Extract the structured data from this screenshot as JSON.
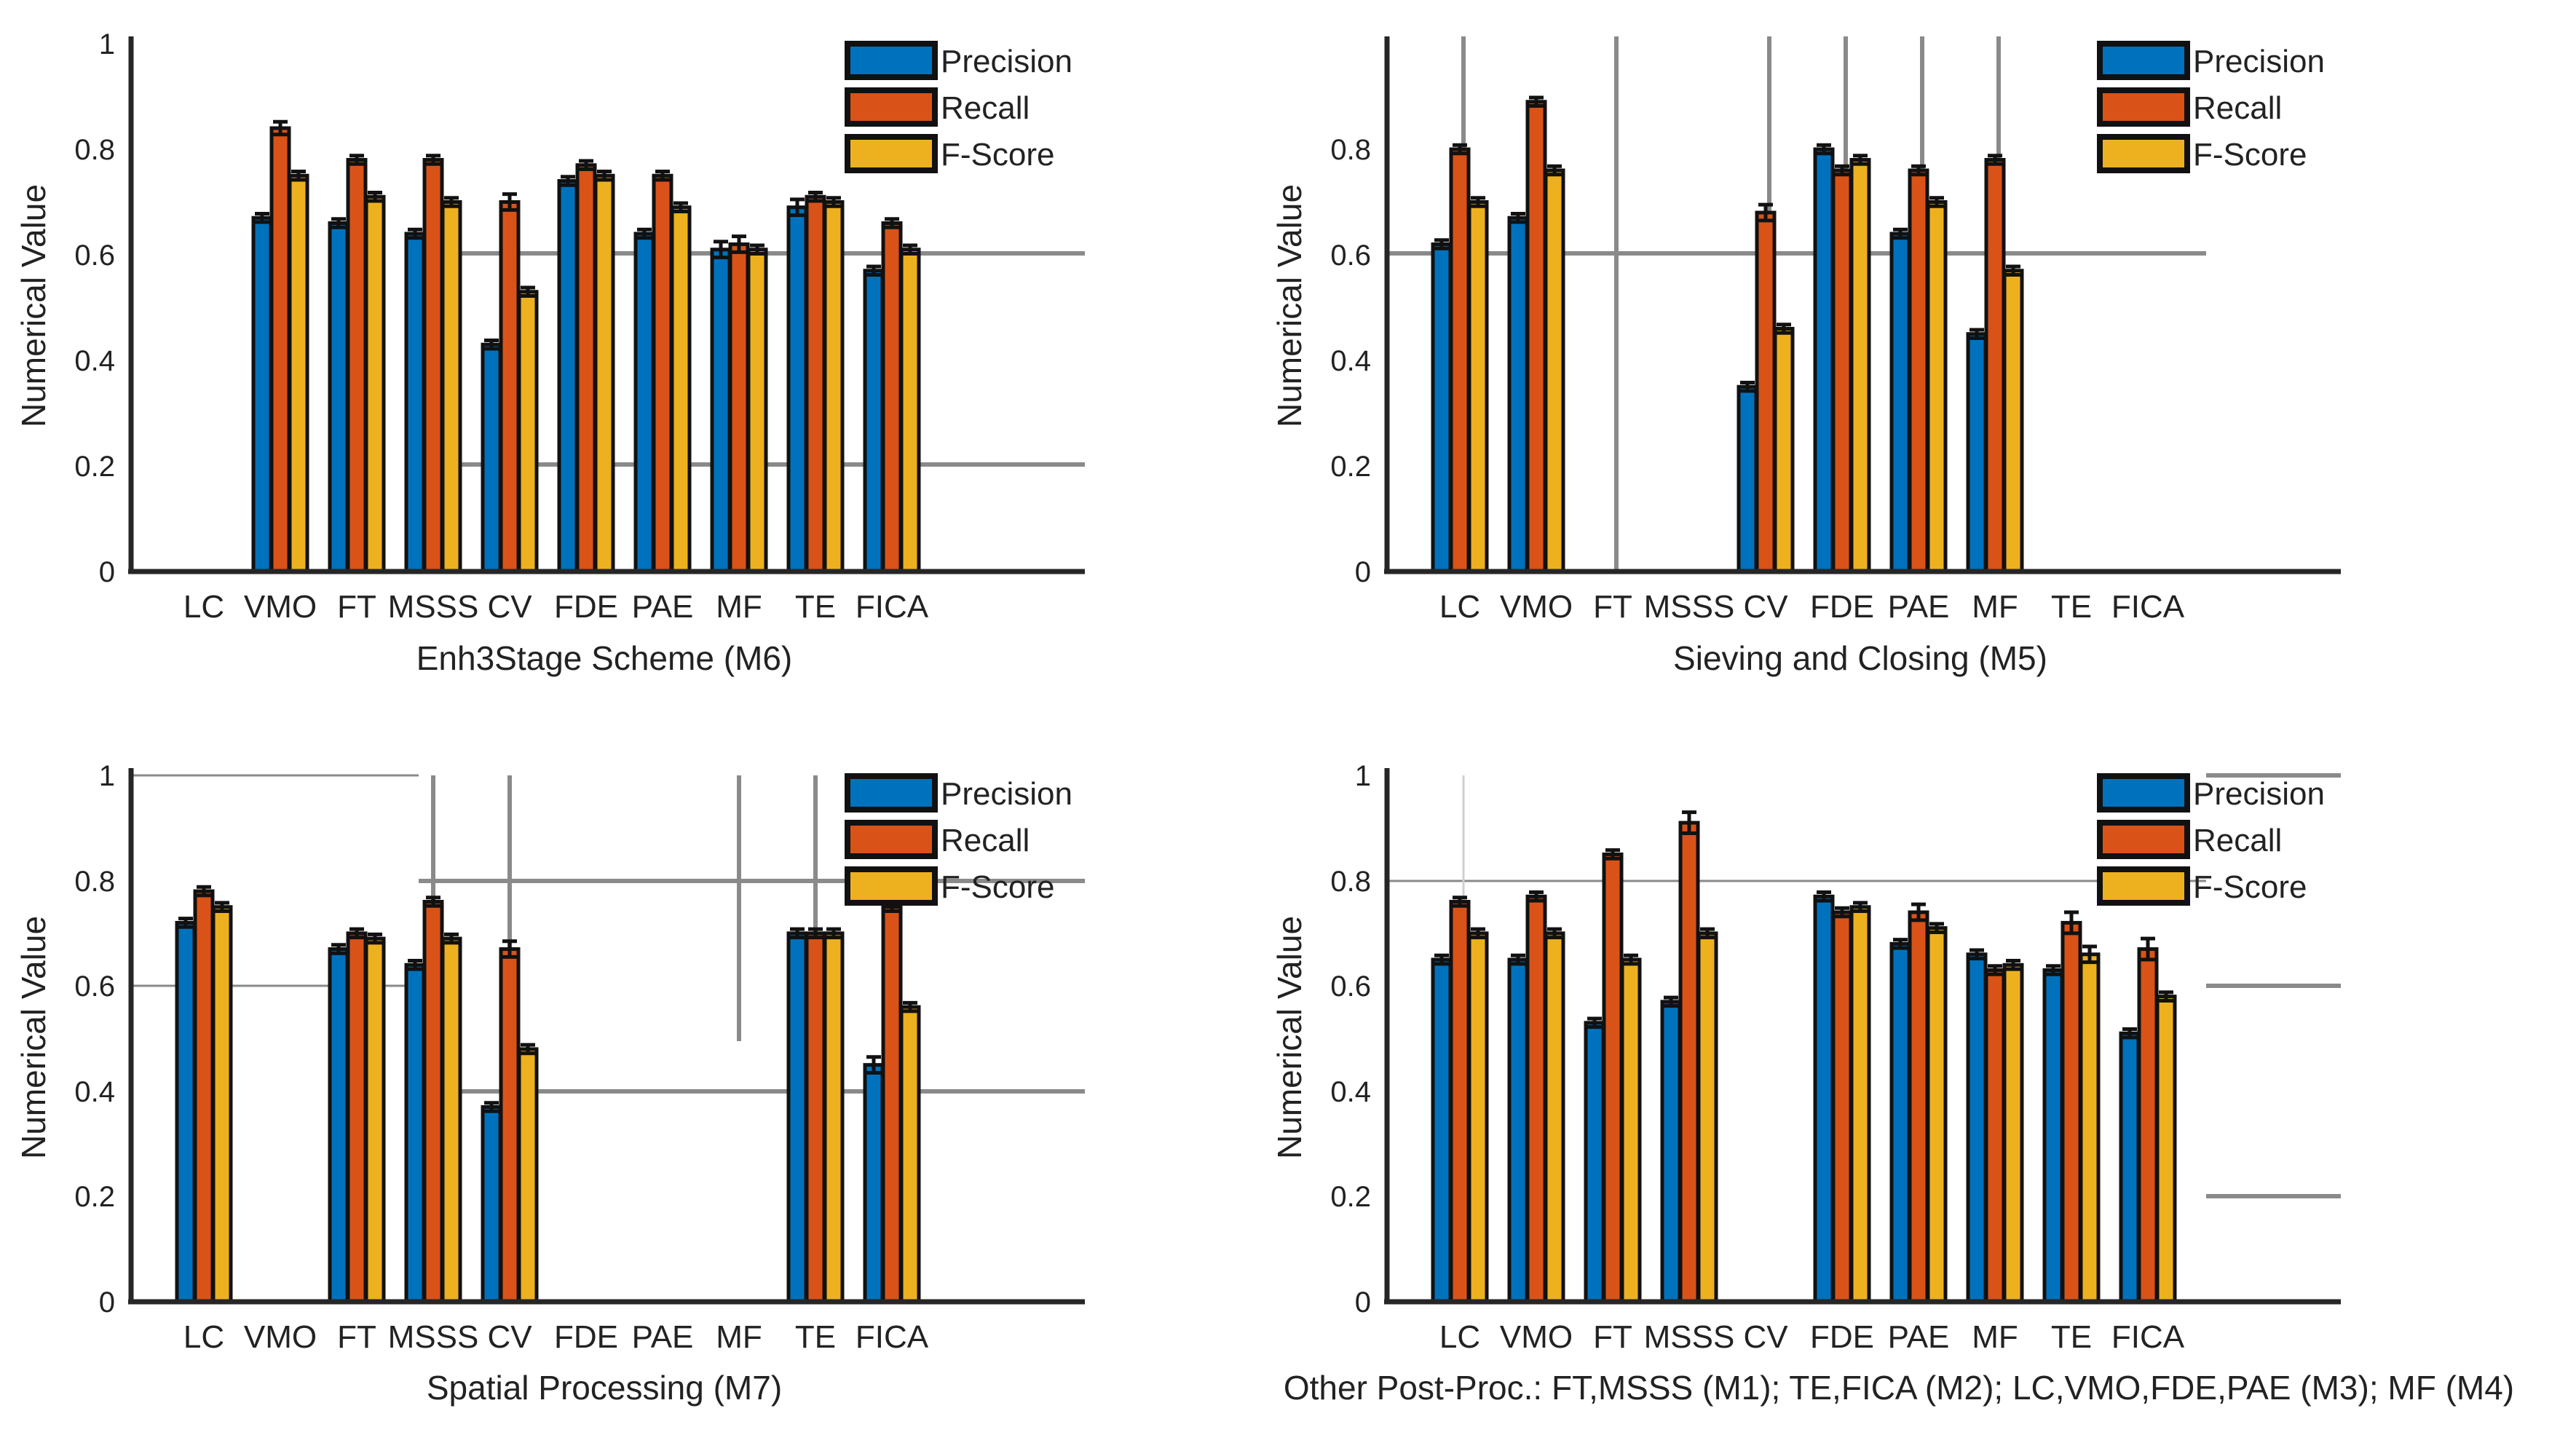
{
  "chart_data": [
    {
      "type": "bar",
      "xlabel": "Enh3Stage Scheme (M6)",
      "ylabel": "Numerical Value",
      "ylim": [
        0,
        1
      ],
      "yticks": [
        "0",
        "0.2",
        "0.4",
        "0.6",
        "0.8",
        "1"
      ],
      "categories": [
        "LC",
        "VMO",
        "FT",
        "MSSS",
        "CV",
        "FDE",
        "PAE",
        "MF",
        "TE",
        "FICA"
      ],
      "series": [
        {
          "name": "Precision",
          "values": [
            0,
            0.67,
            0.66,
            0.64,
            0.43,
            0.74,
            0.64,
            0.61,
            0.69,
            0.57
          ]
        },
        {
          "name": "Recall",
          "values": [
            0,
            0.84,
            0.78,
            0.78,
            0.7,
            0.77,
            0.75,
            0.62,
            0.71,
            0.66
          ]
        },
        {
          "name": "F-Score",
          "values": [
            0,
            0.75,
            0.71,
            0.7,
            0.53,
            0.75,
            0.69,
            0.61,
            0.7,
            0.61
          ]
        }
      ],
      "errors": [
        [
          0,
          0.008,
          0.008,
          0.008,
          0.008,
          0.008,
          0.008,
          0.015,
          0.015,
          0.008
        ],
        [
          0,
          0.012,
          0.008,
          0.008,
          0.015,
          0.008,
          0.008,
          0.015,
          0.008,
          0.008
        ],
        [
          0,
          0.008,
          0.008,
          0.008,
          0.008,
          0.008,
          0.008,
          0.008,
          0.008,
          0.008
        ]
      ],
      "legend": {
        "position": "top-right",
        "entries": [
          "Precision",
          "Recall",
          "F-Score"
        ]
      },
      "colors": [
        "#0072BD",
        "#D95319",
        "#EDB120"
      ]
    },
    {
      "type": "bar",
      "xlabel": "Sieving and Closing (M5)",
      "ylabel": "Numerical Value",
      "ylim": [
        0,
        1
      ],
      "yticks": [
        "0",
        "0.2",
        "0.4",
        "0.6",
        "0.8"
      ],
      "categories": [
        "LC",
        "VMO",
        "FT",
        "MSSS",
        "CV",
        "FDE",
        "PAE",
        "MF",
        "TE",
        "FICA"
      ],
      "series": [
        {
          "name": "Precision",
          "values": [
            0.62,
            0.67,
            0,
            0,
            0.35,
            0.8,
            0.64,
            0.45,
            0,
            0
          ]
        },
        {
          "name": "Recall",
          "values": [
            0.8,
            0.89,
            0,
            0,
            0.68,
            0.76,
            0.76,
            0.78,
            0,
            0
          ]
        },
        {
          "name": "F-Score",
          "values": [
            0.7,
            0.76,
            0,
            0,
            0.46,
            0.78,
            0.7,
            0.57,
            0,
            0
          ]
        }
      ],
      "errors": [
        [
          0.008,
          0.008,
          0,
          0,
          0.008,
          0.008,
          0.008,
          0.008,
          0,
          0
        ],
        [
          0.008,
          0.008,
          0,
          0,
          0.015,
          0.008,
          0.008,
          0.008,
          0,
          0
        ],
        [
          0.008,
          0.008,
          0,
          0,
          0.008,
          0.008,
          0.008,
          0.008,
          0,
          0
        ]
      ],
      "legend": {
        "position": "top-right",
        "entries": [
          "Precision",
          "Recall",
          "F-Score"
        ]
      },
      "colors": [
        "#0072BD",
        "#D95319",
        "#EDB120"
      ]
    },
    {
      "type": "bar",
      "xlabel": "Spatial Processing (M7)",
      "ylabel": "Numerical Value",
      "ylim": [
        0,
        1
      ],
      "yticks": [
        "0",
        "0.2",
        "0.4",
        "0.6",
        "0.8",
        "1"
      ],
      "categories": [
        "LC",
        "VMO",
        "FT",
        "MSSS",
        "CV",
        "FDE",
        "PAE",
        "MF",
        "TE",
        "FICA"
      ],
      "series": [
        {
          "name": "Precision",
          "values": [
            0.72,
            0,
            0.67,
            0.64,
            0.37,
            0,
            0,
            0,
            0.7,
            0.45
          ]
        },
        {
          "name": "Recall",
          "values": [
            0.78,
            0,
            0.7,
            0.76,
            0.67,
            0,
            0,
            0,
            0.7,
            0.75
          ]
        },
        {
          "name": "F-Score",
          "values": [
            0.75,
            0,
            0.69,
            0.69,
            0.48,
            0,
            0,
            0,
            0.7,
            0.56
          ]
        }
      ],
      "errors": [
        [
          0.008,
          0,
          0.008,
          0.008,
          0.008,
          0,
          0,
          0,
          0.008,
          0.015
        ],
        [
          0.008,
          0,
          0.008,
          0.008,
          0.015,
          0,
          0,
          0,
          0.008,
          0.008
        ],
        [
          0.008,
          0,
          0.008,
          0.008,
          0.008,
          0,
          0,
          0,
          0.008,
          0.008
        ]
      ],
      "legend": {
        "position": "top-right",
        "entries": [
          "Precision",
          "Recall",
          "F-Score"
        ]
      },
      "colors": [
        "#0072BD",
        "#D95319",
        "#EDB120"
      ]
    },
    {
      "type": "bar",
      "xlabel": "Other Post-Proc.: FT,MSSS (M1); TE,FICA (M2); LC,VMO,FDE,PAE (M3); MF (M4)",
      "ylabel": "Numerical Value",
      "ylim": [
        0,
        1
      ],
      "yticks": [
        "0",
        "0.2",
        "0.4",
        "0.6",
        "0.8",
        "1"
      ],
      "categories": [
        "LC",
        "VMO",
        "FT",
        "MSSS",
        "CV",
        "FDE",
        "PAE",
        "MF",
        "TE",
        "FICA"
      ],
      "series": [
        {
          "name": "Precision",
          "values": [
            0.65,
            0.65,
            0.53,
            0.57,
            0,
            0.77,
            0.68,
            0.66,
            0.63,
            0.51
          ]
        },
        {
          "name": "Recall",
          "values": [
            0.76,
            0.77,
            0.85,
            0.91,
            0,
            0.74,
            0.74,
            0.63,
            0.72,
            0.67
          ]
        },
        {
          "name": "F-Score",
          "values": [
            0.7,
            0.7,
            0.65,
            0.7,
            0,
            0.75,
            0.71,
            0.64,
            0.66,
            0.58
          ]
        }
      ],
      "errors": [
        [
          0.008,
          0.008,
          0.008,
          0.008,
          0,
          0.008,
          0.008,
          0.008,
          0.008,
          0.008
        ],
        [
          0.008,
          0.008,
          0.008,
          0.02,
          0,
          0.008,
          0.015,
          0.008,
          0.02,
          0.02
        ],
        [
          0.008,
          0.008,
          0.008,
          0.008,
          0,
          0.008,
          0.008,
          0.008,
          0.015,
          0.008
        ]
      ],
      "legend": {
        "position": "top-right",
        "entries": [
          "Precision",
          "Recall",
          "F-Score"
        ]
      },
      "colors": [
        "#0072BD",
        "#D95319",
        "#EDB120"
      ]
    }
  ]
}
